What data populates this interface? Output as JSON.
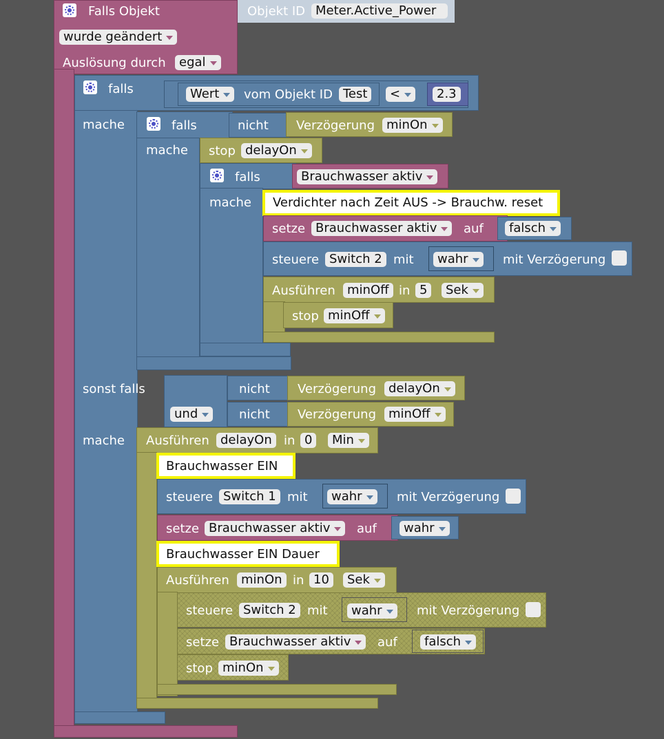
{
  "trigger": {
    "title": "Falls Objekt",
    "object_label": "Objekt ID",
    "object_id": "Meter.Active_Power",
    "change_mode": "wurde geändert",
    "trigger_by_label": "Auslösung durch",
    "trigger_by_value": "egal"
  },
  "outer_if": {
    "falls_label": "falls",
    "wert": "Wert",
    "vom_objekt": "vom Objekt ID",
    "object_id": "Test",
    "operator": "<",
    "number": "2.3",
    "mache_label": "mache",
    "sonst_falls_label": "sonst falls",
    "und_label": "und"
  },
  "inner_if": {
    "falls_label": "falls",
    "nicht_label": "nicht",
    "delay_label": "Verzögerung",
    "delay_value": "minOn",
    "mache_label": "mache",
    "stop_label": "stop",
    "stop_value": "delayOn"
  },
  "nested_if": {
    "falls_label": "falls",
    "condition": "Brauchwasser aktiv",
    "mache_label": "mache",
    "comment": "Verdichter nach Zeit AUS -> Brauchw. reset",
    "setze_label": "setze",
    "setze_var": "Brauchwasser aktiv",
    "auf_label": "auf",
    "setze_value": "falsch",
    "steuere_label": "steuere",
    "steuere_target": "Switch 2",
    "mit_label": "mit",
    "steuere_value": "wahr",
    "mit_verz_label": "mit Verzögerung",
    "ausfuehren_label": "Ausführen",
    "timer_name": "minOff",
    "in_label": "in",
    "timer_value": "5",
    "timer_unit": "Sek",
    "stop_label": "stop",
    "stop_value": "minOff"
  },
  "elseif": {
    "nicht1_label": "nicht",
    "delay1_label": "Verzögerung",
    "delay1_value": "delayOn",
    "und_label": "und",
    "nicht2_label": "nicht",
    "delay2_label": "Verzögerung",
    "delay2_value": "minOff",
    "mache_label": "mache",
    "ausfuehren_label": "Ausführen",
    "timer_name": "delayOn",
    "in_label": "in",
    "timer_value": "0",
    "timer_unit": "Min",
    "comment1": "Brauchwasser EIN",
    "steuere_label": "steuere",
    "steuere_target": "Switch 1",
    "mit_label": "mit",
    "steuere_value": "wahr",
    "mit_verz_label": "mit Verzögerung",
    "setze_label": "setze",
    "setze_var": "Brauchwasser aktiv",
    "auf_label": "auf",
    "setze_value": "wahr",
    "comment2": "Brauchwasser EIN Dauer",
    "ausfuehren2_label": "Ausführen",
    "timer2_name": "minOn",
    "in2_label": "in",
    "timer2_value": "10",
    "timer2_unit": "Sek",
    "steuere2_label": "steuere",
    "steuere2_target": "Switch 2",
    "mit2_label": "mit",
    "steuere2_value": "wahr",
    "mit_verz2_label": "mit Verzögerung",
    "setze2_label": "setze",
    "setze2_var": "Brauchwasser aktiv",
    "auf2_label": "auf",
    "setze2_value": "falsch",
    "stop2_label": "stop",
    "stop2_value": "minOn"
  },
  "colors": {
    "trigger_pink": "#a55b80",
    "logic_blue": "#5b80a5",
    "timer_green": "#a5a55b",
    "comment_yellow": "#f4f400",
    "workspace": "#555555"
  }
}
